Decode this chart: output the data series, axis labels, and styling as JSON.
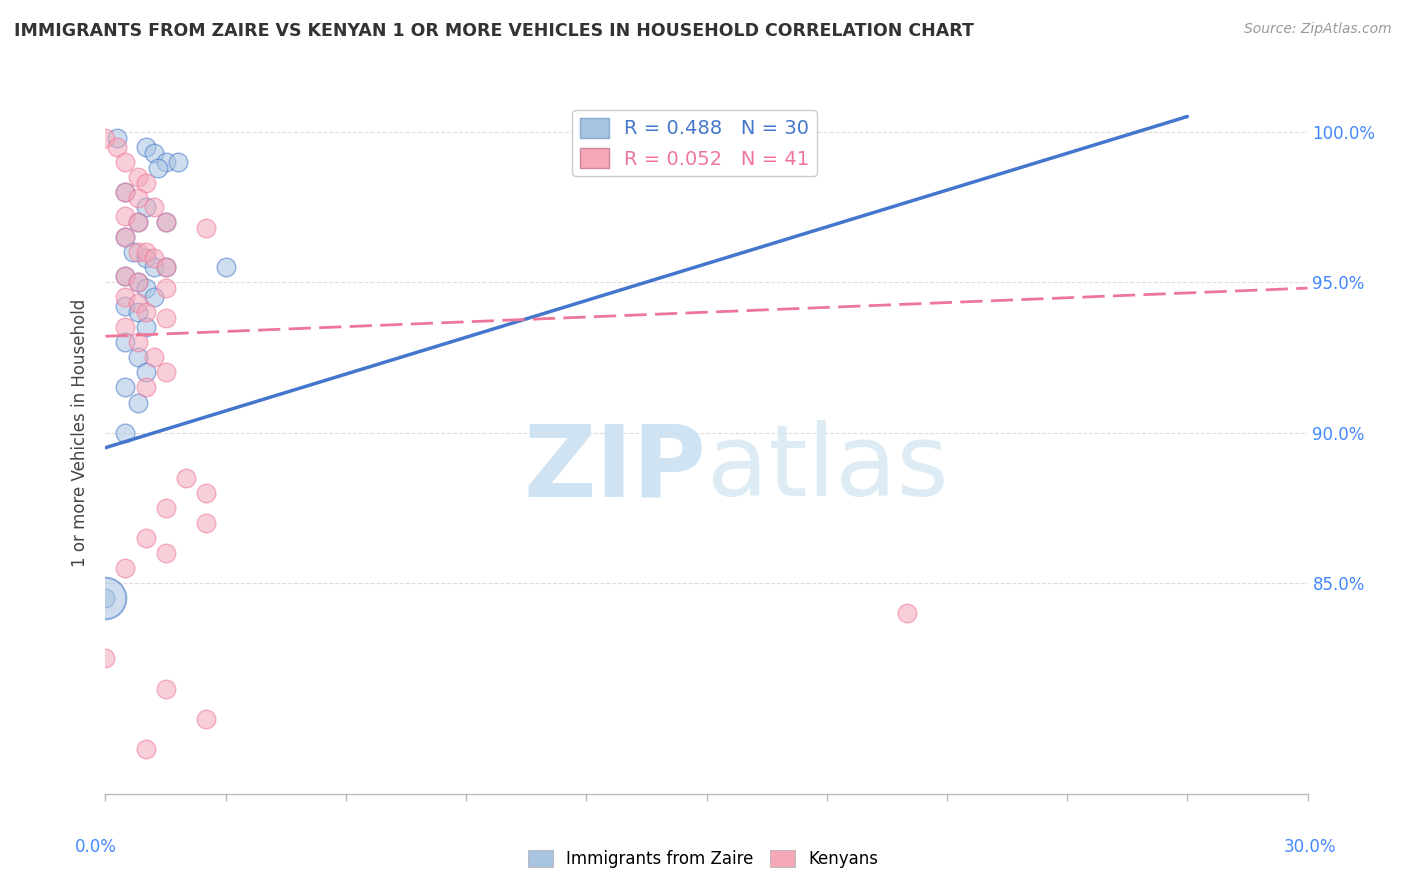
{
  "title": "IMMIGRANTS FROM ZAIRE VS KENYAN 1 OR MORE VEHICLES IN HOUSEHOLD CORRELATION CHART",
  "source": "Source: ZipAtlas.com",
  "ylabel": "1 or more Vehicles in Household",
  "legend1_r": "0.488",
  "legend1_n": "30",
  "legend2_r": "0.052",
  "legend2_n": "41",
  "blue_color": "#a8c4e0",
  "pink_color": "#f4a8b8",
  "blue_line_color": "#4477cc",
  "pink_line_color": "#ee7799",
  "blue_scatter": [
    [
      0.0,
      84.5
    ],
    [
      0.3,
      99.8
    ],
    [
      1.0,
      99.5
    ],
    [
      1.2,
      99.3
    ],
    [
      1.5,
      99.0
    ],
    [
      1.8,
      99.0
    ],
    [
      1.3,
      98.8
    ],
    [
      0.5,
      98.0
    ],
    [
      1.0,
      97.5
    ],
    [
      0.8,
      97.0
    ],
    [
      1.5,
      97.0
    ],
    [
      0.5,
      96.5
    ],
    [
      0.7,
      96.0
    ],
    [
      1.0,
      95.8
    ],
    [
      1.2,
      95.5
    ],
    [
      1.5,
      95.5
    ],
    [
      0.5,
      95.2
    ],
    [
      0.8,
      95.0
    ],
    [
      1.0,
      94.8
    ],
    [
      1.2,
      94.5
    ],
    [
      0.5,
      94.2
    ],
    [
      0.8,
      94.0
    ],
    [
      1.0,
      93.5
    ],
    [
      0.5,
      93.0
    ],
    [
      0.8,
      92.5
    ],
    [
      1.0,
      92.0
    ],
    [
      0.5,
      91.5
    ],
    [
      0.8,
      91.0
    ],
    [
      0.5,
      90.0
    ],
    [
      3.0,
      95.5
    ]
  ],
  "pink_scatter": [
    [
      0.0,
      99.8
    ],
    [
      0.3,
      99.5
    ],
    [
      0.5,
      99.0
    ],
    [
      0.8,
      98.5
    ],
    [
      1.0,
      98.3
    ],
    [
      0.5,
      98.0
    ],
    [
      0.8,
      97.8
    ],
    [
      1.2,
      97.5
    ],
    [
      0.5,
      97.2
    ],
    [
      0.8,
      97.0
    ],
    [
      1.5,
      97.0
    ],
    [
      2.5,
      96.8
    ],
    [
      0.5,
      96.5
    ],
    [
      0.8,
      96.0
    ],
    [
      1.0,
      96.0
    ],
    [
      1.2,
      95.8
    ],
    [
      1.5,
      95.5
    ],
    [
      0.5,
      95.2
    ],
    [
      0.8,
      95.0
    ],
    [
      1.5,
      94.8
    ],
    [
      0.5,
      94.5
    ],
    [
      0.8,
      94.3
    ],
    [
      1.0,
      94.0
    ],
    [
      1.5,
      93.8
    ],
    [
      0.5,
      93.5
    ],
    [
      0.8,
      93.0
    ],
    [
      1.2,
      92.5
    ],
    [
      1.5,
      92.0
    ],
    [
      1.0,
      91.5
    ],
    [
      2.0,
      88.5
    ],
    [
      2.5,
      88.0
    ],
    [
      1.5,
      87.5
    ],
    [
      2.5,
      87.0
    ],
    [
      1.0,
      86.5
    ],
    [
      1.5,
      86.0
    ],
    [
      0.5,
      85.5
    ],
    [
      20.0,
      84.0
    ],
    [
      0.0,
      82.5
    ],
    [
      1.5,
      81.5
    ],
    [
      2.5,
      80.5
    ],
    [
      1.0,
      79.5
    ]
  ],
  "xlim": [
    0.0,
    30.0
  ],
  "ylim": [
    78.0,
    102.0
  ],
  "yticks": [
    85.0,
    90.0,
    95.0,
    100.0
  ],
  "xticks": [
    0.0,
    3.0,
    6.0,
    9.0,
    12.0,
    15.0,
    18.0,
    21.0,
    24.0,
    27.0,
    30.0
  ],
  "grid_color": "#dddddd",
  "blue_line_x": [
    0.0,
    27.0
  ],
  "blue_line_y": [
    89.5,
    100.5
  ],
  "pink_line_x": [
    0.0,
    30.0
  ],
  "pink_line_y": [
    93.2,
    94.8
  ]
}
